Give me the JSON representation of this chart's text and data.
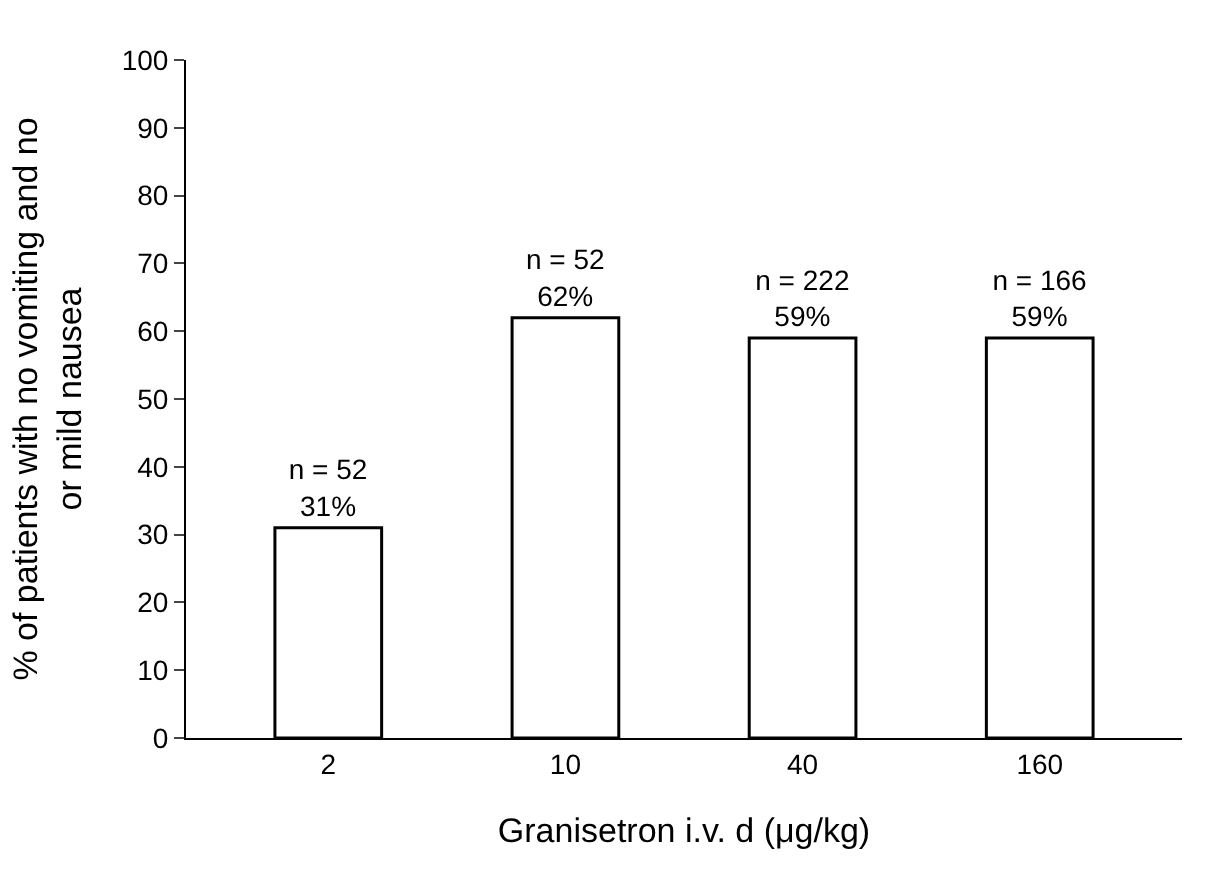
{
  "chart_data": {
    "type": "bar",
    "xlabel": "Granisetron i.v. d (μg/kg)",
    "ylabel": "% of patients with no vomiting and no or mild nausea",
    "categories": [
      "2",
      "10",
      "40",
      "160"
    ],
    "values": [
      31,
      62,
      59,
      59
    ],
    "value_labels": [
      "n = 52\n31%",
      "n = 52\n62%",
      "n = 222\n59%",
      "n = 166\n59%"
    ],
    "color": "#ffffff",
    "ylim": [
      0,
      100
    ],
    "yticks": [
      0,
      10,
      20,
      30,
      40,
      50,
      60,
      70,
      80,
      90,
      100
    ]
  }
}
